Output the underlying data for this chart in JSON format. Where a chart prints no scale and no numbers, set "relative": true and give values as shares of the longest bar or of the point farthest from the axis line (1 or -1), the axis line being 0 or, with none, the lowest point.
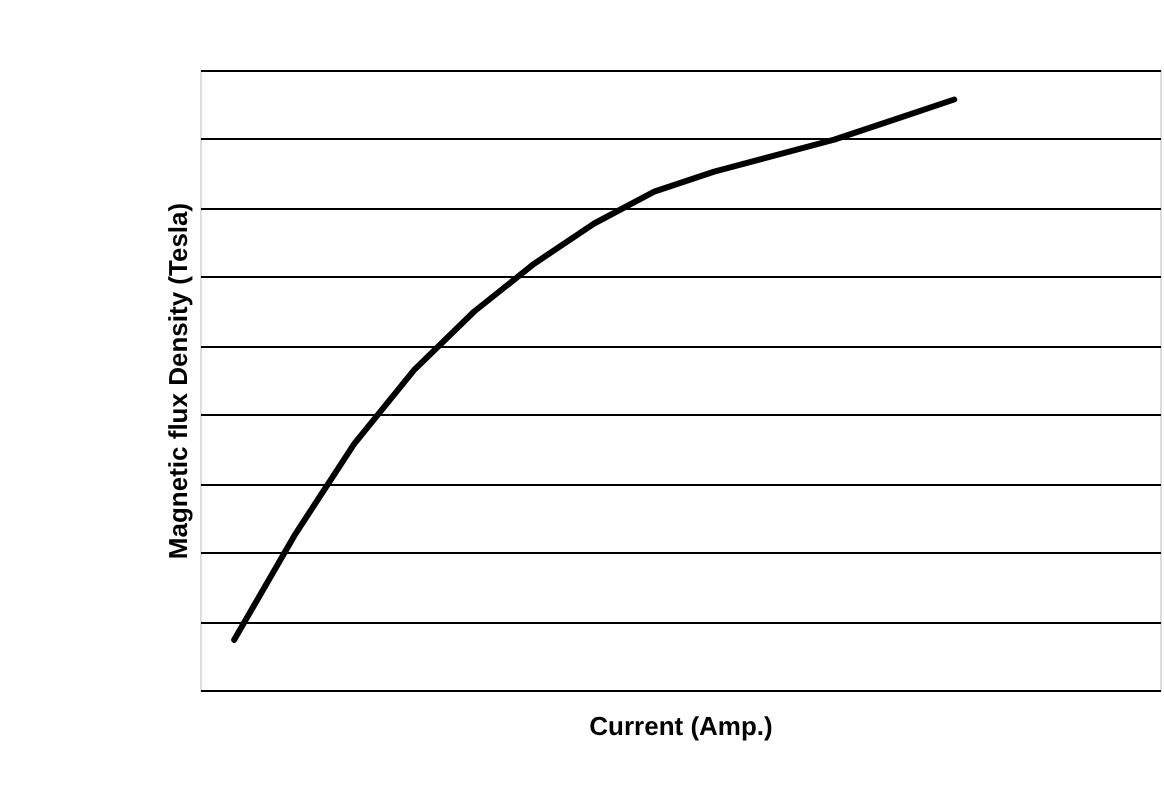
{
  "chart_data": {
    "type": "line",
    "xlabel": "Current (Amp.)",
    "ylabel": "Magnetic flux Density (Tesla)",
    "relative": true,
    "grid": "y",
    "marker": "none",
    "line_style": "solid",
    "tick_labels": false,
    "categories": [
      null,
      null,
      null,
      null,
      null,
      null,
      null,
      null,
      null,
      null,
      null,
      null,
      null
    ],
    "series": [
      {
        "color": "#000000",
        "values": [
          0.085,
          0.261,
          0.417,
          0.542,
          0.641,
          0.722,
          0.79,
          0.844,
          0.878,
          0.905,
          0.932,
          0.966,
          1.0
        ]
      }
    ]
  }
}
